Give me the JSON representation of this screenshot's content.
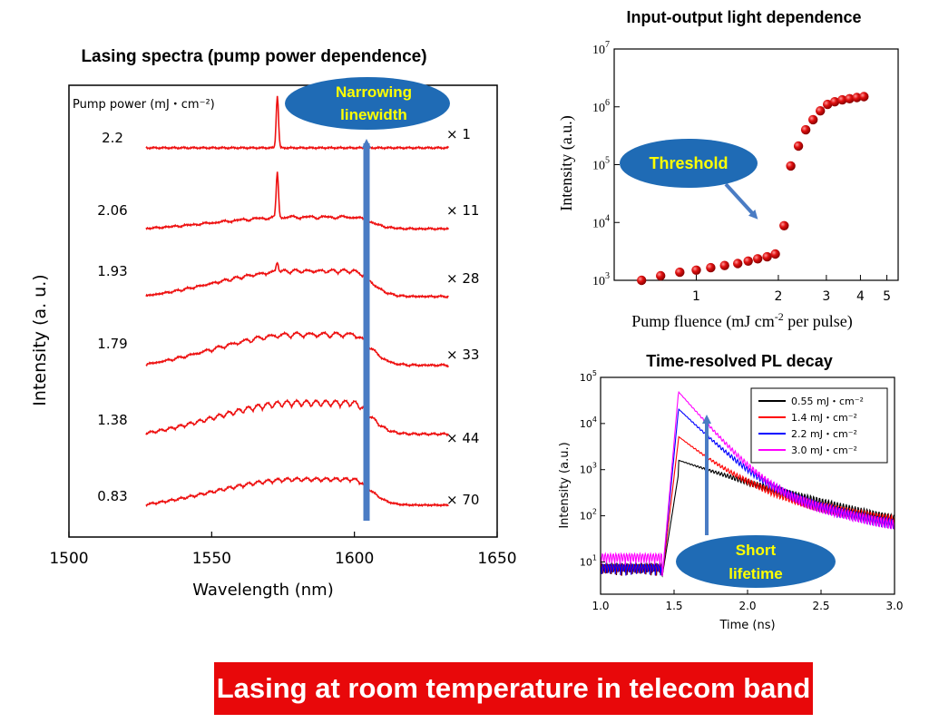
{
  "colors": {
    "spectrum": "#ee1111",
    "callout_fill": "#1f6bb5",
    "callout_text": "#ffff00",
    "arrow": "#4a7cc4",
    "banner": "#e8080a",
    "point": "#e01010"
  },
  "banner": {
    "text": "Lasing at room temperature in telecom band"
  },
  "chart_data": [
    {
      "type": "line",
      "title": "Lasing spectra (pump power dependence)",
      "xlabel": "Wavelength (nm)",
      "ylabel": "Intensity (a. u.)",
      "xlim": [
        1500,
        1650
      ],
      "x_ticks": [
        "1500",
        "1550",
        "1600",
        "1650"
      ],
      "pump_header": "Pump power (mJ・cm⁻²)",
      "wavelength_range": [
        1527,
        1633
      ],
      "series": [
        {
          "pump": "2.2",
          "multiplier": "× 1",
          "lasing_peak": 1573
        },
        {
          "pump": "2.06",
          "multiplier": "× 11",
          "lasing_peak": 1573
        },
        {
          "pump": "1.93",
          "multiplier": "× 28",
          "lasing_peak": 1573
        },
        {
          "pump": "1.79",
          "multiplier": "× 33"
        },
        {
          "pump": "1.38",
          "multiplier": "× 44"
        },
        {
          "pump": "0.83",
          "multiplier": "× 70"
        }
      ],
      "callout": {
        "line1": "Narrowing",
        "line2": "linewidth"
      }
    },
    {
      "type": "scatter",
      "title": "Input-output light dependence",
      "xlabel": "Pump fluence (mJ cm⁻² per pulse)",
      "ylabel": "Intensity (a.u.)",
      "x_scale": "log",
      "y_scale": "log",
      "xlim": [
        0.5,
        5.5
      ],
      "ylim": [
        1000,
        10000000
      ],
      "x_ticks": [
        "1",
        "2",
        "3",
        "4",
        "5"
      ],
      "y_ticks": [
        {
          "base": "10",
          "exp": "3",
          "value": 1000
        },
        {
          "base": "10",
          "exp": "4",
          "value": 10000
        },
        {
          "base": "10",
          "exp": "5",
          "value": 100000
        },
        {
          "base": "10",
          "exp": "6",
          "value": 1000000
        },
        {
          "base": "10",
          "exp": "7",
          "value": 10000000
        }
      ],
      "points": [
        [
          0.63,
          1000
        ],
        [
          0.74,
          1200
        ],
        [
          0.87,
          1380
        ],
        [
          1.0,
          1500
        ],
        [
          1.13,
          1650
        ],
        [
          1.27,
          1800
        ],
        [
          1.42,
          1950
        ],
        [
          1.55,
          2150
        ],
        [
          1.68,
          2350
        ],
        [
          1.82,
          2550
        ],
        [
          1.95,
          2850
        ],
        [
          2.1,
          8800
        ],
        [
          2.22,
          95000
        ],
        [
          2.37,
          210000
        ],
        [
          2.52,
          400000
        ],
        [
          2.68,
          600000
        ],
        [
          2.85,
          850000
        ],
        [
          3.03,
          1100000
        ],
        [
          3.22,
          1220000
        ],
        [
          3.43,
          1320000
        ],
        [
          3.65,
          1380000
        ],
        [
          3.88,
          1450000
        ],
        [
          4.12,
          1500000
        ]
      ],
      "callout": {
        "text": "Threshold"
      }
    },
    {
      "type": "line",
      "title": "Time-resolved PL decay",
      "xlabel": "Time (ns)",
      "ylabel": "Intensity (a.u.)",
      "y_scale": "log",
      "xlim": [
        1.0,
        3.0
      ],
      "ylim": [
        2,
        100000
      ],
      "x_ticks": [
        "1.0",
        "1.5",
        "2.0",
        "2.5",
        "3.0"
      ],
      "y_ticks": [
        {
          "base": "10",
          "exp": "1",
          "value": 10
        },
        {
          "base": "10",
          "exp": "2",
          "value": 100
        },
        {
          "base": "10",
          "exp": "3",
          "value": 1000
        },
        {
          "base": "10",
          "exp": "4",
          "value": 10000
        },
        {
          "base": "10",
          "exp": "5",
          "value": 100000
        }
      ],
      "series": [
        {
          "name": "0.55 mJ・cm⁻²",
          "color": "#000000",
          "peak": 800
        },
        {
          "name": "1.4 mJ・cm⁻²",
          "color": "#ff0000",
          "peak": 4500
        },
        {
          "name": "2.2 mJ・cm⁻²",
          "color": "#0000ff",
          "peak": 20000
        },
        {
          "name": "3.0 mJ・cm⁻²",
          "color": "#ff00ff",
          "peak": 48000
        }
      ],
      "callout": {
        "line1": "Short",
        "line2": "lifetime"
      }
    }
  ]
}
